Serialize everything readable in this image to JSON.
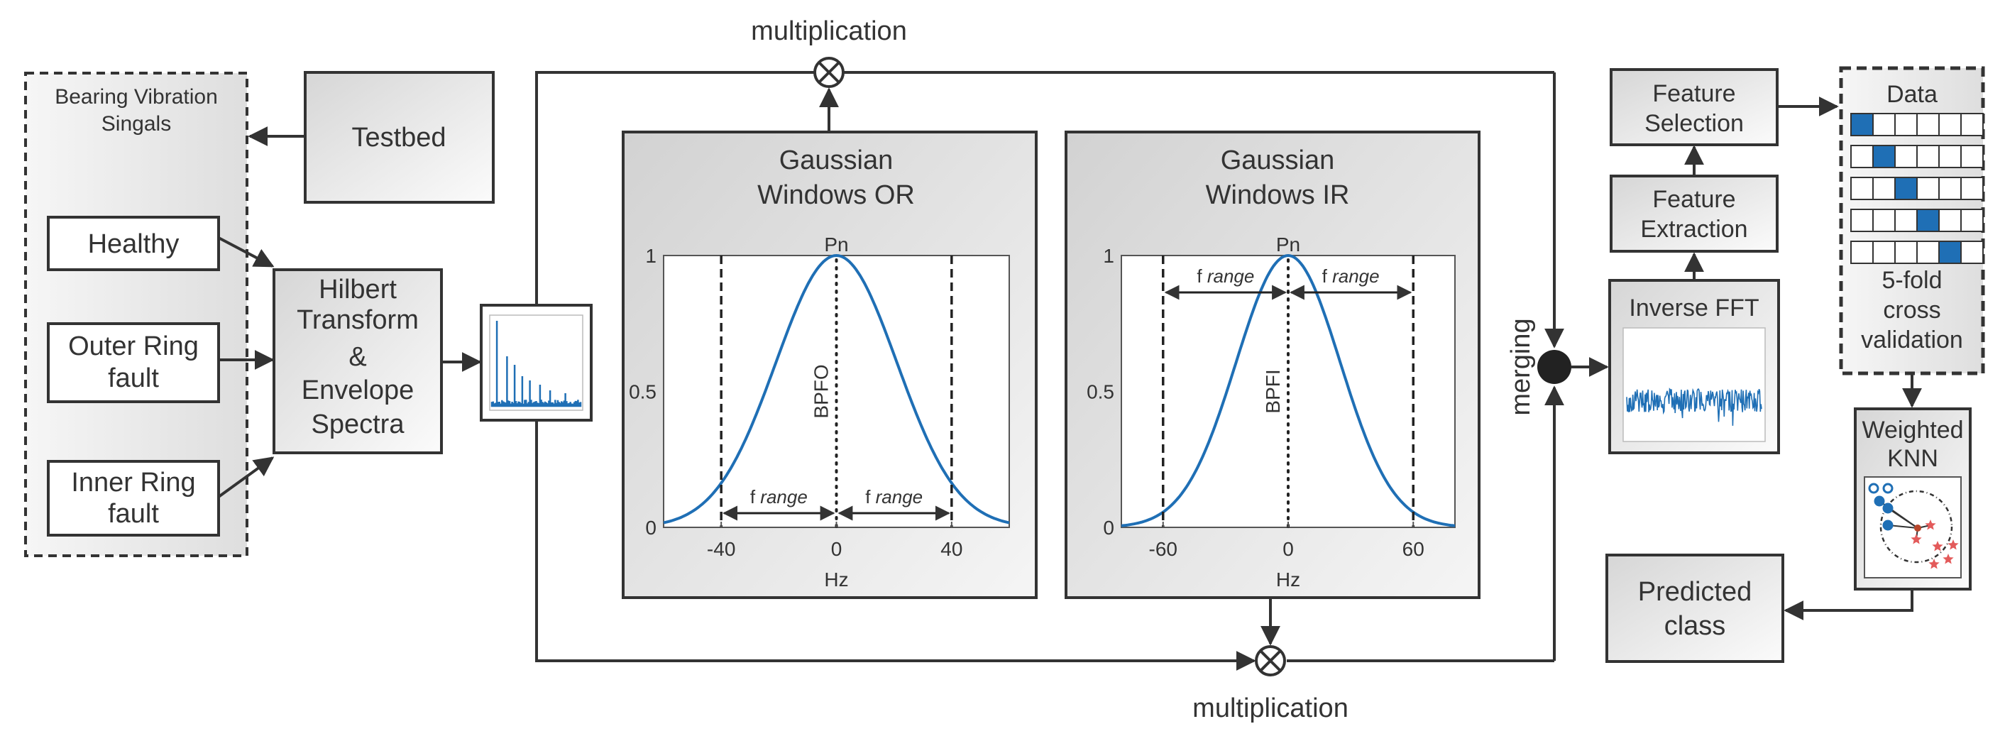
{
  "colors": {
    "line": "#333333",
    "curve": "#1f6fb5",
    "box_fill_dark": "#d8d8d8",
    "box_fill_light": "#fafafa",
    "red": "#e35a5a"
  },
  "left": {
    "group_title_line1": "Bearing Vibration",
    "group_title_line2": "Singals",
    "testbed": "Testbed",
    "healthy": "Healthy",
    "outer_line1": "Outer Ring",
    "outer_line2": "fault",
    "inner_line1": "Inner Ring",
    "inner_line2": "fault"
  },
  "hilbert": {
    "line1": "Hilbert",
    "line2": "Transform",
    "line3": "&",
    "line4": "Envelope",
    "line5": "Spectra"
  },
  "multiplication_top": "multiplication",
  "multiplication_bottom": "multiplication",
  "merging": "merging",
  "gauss_or": {
    "title_line1": "Gaussian",
    "title_line2": "Windows OR",
    "peak_label": "Pn",
    "center_label": "BPFO",
    "range_left": "range",
    "range_right": "range",
    "f": "f",
    "xlabel": "Hz",
    "yticks": [
      "1",
      "0.5",
      "0"
    ],
    "xticks": [
      "-40",
      "0",
      "40"
    ]
  },
  "gauss_ir": {
    "title_line1": "Gaussian",
    "title_line2": "Windows IR",
    "peak_label": "Pn",
    "center_label": "BPFI",
    "range_left": "range",
    "range_right": "range",
    "f": "f",
    "xlabel": "Hz",
    "yticks": [
      "1",
      "0.5",
      "0"
    ],
    "xticks": [
      "-60",
      "0",
      "60"
    ]
  },
  "right": {
    "inverse_fft": "Inverse FFT",
    "feat_ext_line1": "Feature",
    "feat_ext_line2": "Extraction",
    "feat_sel_line1": "Feature",
    "feat_sel_line2": "Selection",
    "data_title": "Data",
    "cv_line1": "5-fold",
    "cv_line2": "cross",
    "cv_line3": "validation",
    "knn_line1": "Weighted",
    "knn_line2": "KNN",
    "pred_line1": "Predicted",
    "pred_line2": "class"
  },
  "chart_data": [
    {
      "type": "line",
      "title": "Gaussian Windows OR",
      "xlabel": "Hz",
      "ylabel": "",
      "xlim": [
        -60,
        60
      ],
      "ylim": [
        0,
        1
      ],
      "center": 0,
      "sigma": 21,
      "window_edges": [
        -40,
        40
      ],
      "annotations": [
        "Pn",
        "BPFO",
        "f range",
        "f range"
      ]
    },
    {
      "type": "line",
      "title": "Gaussian Windows IR",
      "xlabel": "Hz",
      "ylabel": "",
      "xlim": [
        -80,
        80
      ],
      "ylim": [
        0,
        1
      ],
      "center": 0,
      "sigma": 25,
      "window_edges": [
        -60,
        60
      ],
      "annotations": [
        "Pn",
        "BPFI",
        "f range",
        "f range"
      ]
    }
  ]
}
